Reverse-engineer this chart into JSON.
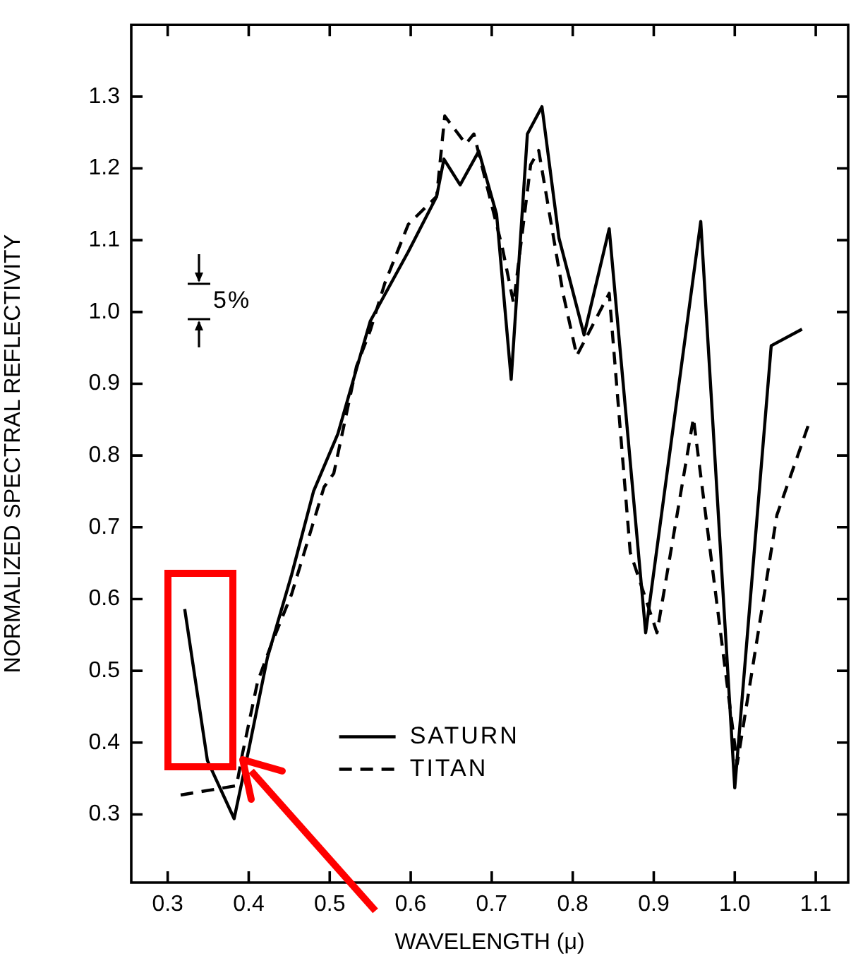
{
  "chart_data": {
    "type": "line",
    "xlabel": "WAVELENGTH (μ)",
    "ylabel": "NORMALIZED SPECTRAL REFLECTIVITY",
    "annotations": [
      "5%"
    ],
    "xlim": [
      0.255,
      1.14
    ],
    "ylim": [
      0.205,
      1.4
    ],
    "xticks": [
      0.3,
      0.4,
      0.5,
      0.6,
      0.7,
      0.8,
      0.9,
      {
        "value": 1,
        "label": "1.0"
      },
      1.1
    ],
    "yticks": [
      0.3,
      0.4,
      0.5,
      0.6,
      0.7,
      0.8,
      0.9,
      {
        "value": 1,
        "label": "1.0"
      },
      1.1,
      1.2,
      1.3
    ],
    "grid": false,
    "legend": "bottom",
    "marker": "none",
    "series": [
      {
        "name": "SATURN",
        "color": "#000000",
        "line_style": "solid",
        "x": [
          0.321,
          0.349,
          0.382,
          0.4,
          0.423,
          0.453,
          0.48,
          0.51,
          0.527,
          0.55,
          0.597,
          0.632,
          0.641,
          0.661,
          0.684,
          0.706,
          0.724,
          0.744,
          0.762,
          0.783,
          0.814,
          0.845,
          0.89,
          0.958,
          1.0,
          1.045,
          1.083
        ],
        "values": [
          0.586,
          0.375,
          0.294,
          0.39,
          0.518,
          0.634,
          0.75,
          0.83,
          0.897,
          0.987,
          1.084,
          1.161,
          1.213,
          1.177,
          1.224,
          1.136,
          0.906,
          1.248,
          1.286,
          1.103,
          0.968,
          1.116,
          0.553,
          1.126,
          0.337,
          0.953,
          0.976
        ]
      },
      {
        "name": "TITAN",
        "color": "#000000",
        "line_style": "dashed",
        "x": [
          0.316,
          0.385,
          0.392,
          0.411,
          0.428,
          0.453,
          0.493,
          0.505,
          0.533,
          0.55,
          0.568,
          0.597,
          0.632,
          0.642,
          0.668,
          0.678,
          0.713,
          0.727,
          0.748,
          0.758,
          0.788,
          0.805,
          0.845,
          0.871,
          0.904,
          0.949,
          1.003,
          1.052,
          1.092
        ],
        "values": [
          0.327,
          0.34,
          0.383,
          0.485,
          0.537,
          0.607,
          0.756,
          0.775,
          0.924,
          0.974,
          1.04,
          1.122,
          1.161,
          1.273,
          1.234,
          1.248,
          1.09,
          1.012,
          1.205,
          1.225,
          1.026,
          0.939,
          1.026,
          0.665,
          0.553,
          0.852,
          0.37,
          0.717,
          0.846
        ]
      }
    ]
  }
}
